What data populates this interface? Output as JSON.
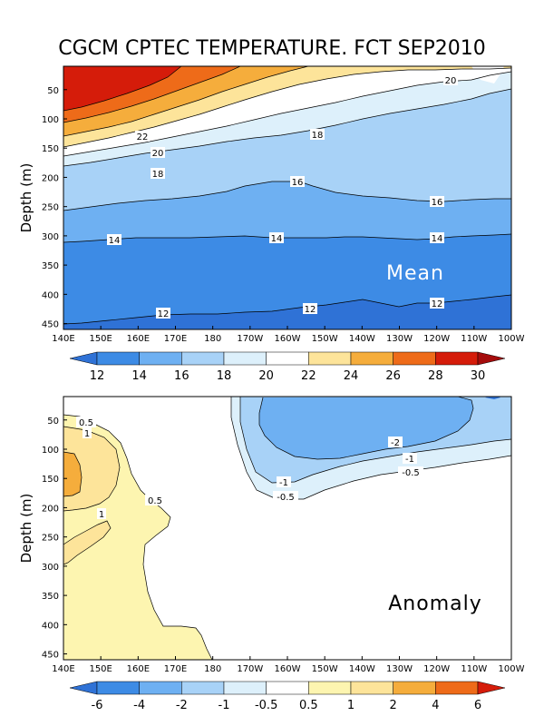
{
  "title": "CGCM CPTEC TEMPERATURE. FCT SEP2010",
  "chart_data": [
    {
      "type": "contour",
      "panel_label": "Mean",
      "ylabel": "Depth (m)",
      "xticks": [
        "140E",
        "150E",
        "160E",
        "170E",
        "180",
        "170W",
        "160W",
        "150W",
        "140W",
        "130W",
        "120W",
        "110W",
        "100W"
      ],
      "yticks": [
        50,
        100,
        150,
        200,
        250,
        300,
        350,
        400,
        450
      ],
      "ylim": [
        460,
        10
      ],
      "colorbar": {
        "levels": [
          "12",
          "14",
          "16",
          "18",
          "20",
          "22",
          "24",
          "26",
          "28",
          "30"
        ],
        "colors": [
          "#2f72d6",
          "#3d8be5",
          "#6eb0f2",
          "#a8d2f7",
          "#ddf0fb",
          "#ffffff",
          "#fde49a",
          "#f5ad3c",
          "#ee6b19",
          "#d51c0a",
          "#a50c0c"
        ]
      },
      "contour_labels": [
        "20",
        "22",
        "20",
        "18",
        "18",
        "16",
        "16",
        "14",
        "14",
        "14",
        "12",
        "12",
        "12"
      ]
    },
    {
      "type": "contour",
      "panel_label": "Anomaly",
      "ylabel": "Depth (m)",
      "xticks": [
        "140E",
        "150E",
        "160E",
        "170E",
        "180",
        "170W",
        "160W",
        "150W",
        "140W",
        "130W",
        "120W",
        "110W",
        "100W"
      ],
      "yticks": [
        50,
        100,
        150,
        200,
        250,
        300,
        350,
        400,
        450
      ],
      "ylim": [
        460,
        10
      ],
      "colorbar": {
        "levels": [
          "-6",
          "-4",
          "-2",
          "-1",
          "-0.5",
          "0.5",
          "1",
          "2",
          "4",
          "6"
        ],
        "colors": [
          "#2f72d6",
          "#3d8be5",
          "#6eb0f2",
          "#a8d2f7",
          "#ddf0fb",
          "#ffffff",
          "#fdf5b0",
          "#fde49a",
          "#f5ad3c",
          "#ee6b19",
          "#d51c0a"
        ]
      },
      "contour_labels": [
        "0.5",
        "1",
        "0.5",
        "1",
        "-2",
        "-1",
        "-0.5",
        "-1",
        "-0.5"
      ]
    }
  ]
}
